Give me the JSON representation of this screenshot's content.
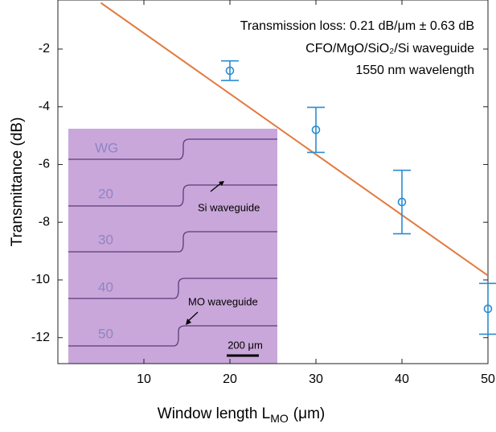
{
  "chart_data": {
    "type": "scatter",
    "x": [
      20,
      30,
      40,
      50
    ],
    "values": [
      -2.75,
      -4.8,
      -7.3,
      -11.0
    ],
    "errors": [
      0.34,
      0.78,
      1.1,
      0.88
    ],
    "color": "#2b8cd0",
    "fit": {
      "x": [
        5,
        50
      ],
      "y": [
        -0.4,
        -9.85
      ],
      "color": "#e27a3f"
    },
    "xlim": [
      0,
      50
    ],
    "xticks": [
      10,
      20,
      30,
      40,
      50
    ],
    "ylim": [
      -12.9,
      -0.3
    ],
    "yticks": [
      -2,
      -4,
      -6,
      -8,
      -10,
      -12
    ],
    "x_label": {
      "text": "Window length L",
      "subscript": "MO",
      "unit": "(μm)"
    },
    "y_label": "Transmittance (dB)",
    "annotations": [
      "Transmission loss: 0.21 dB/μm ± 0.63 dB",
      "CFO/MgO/SiO₂/Si waveguide",
      "1550 nm wavelength"
    ],
    "inset": {
      "rows": [
        "WG",
        "20",
        "30",
        "40",
        "50"
      ],
      "labels": [
        "Si waveguide",
        "MO waveguide"
      ],
      "scale_bar": "200 μm"
    }
  }
}
